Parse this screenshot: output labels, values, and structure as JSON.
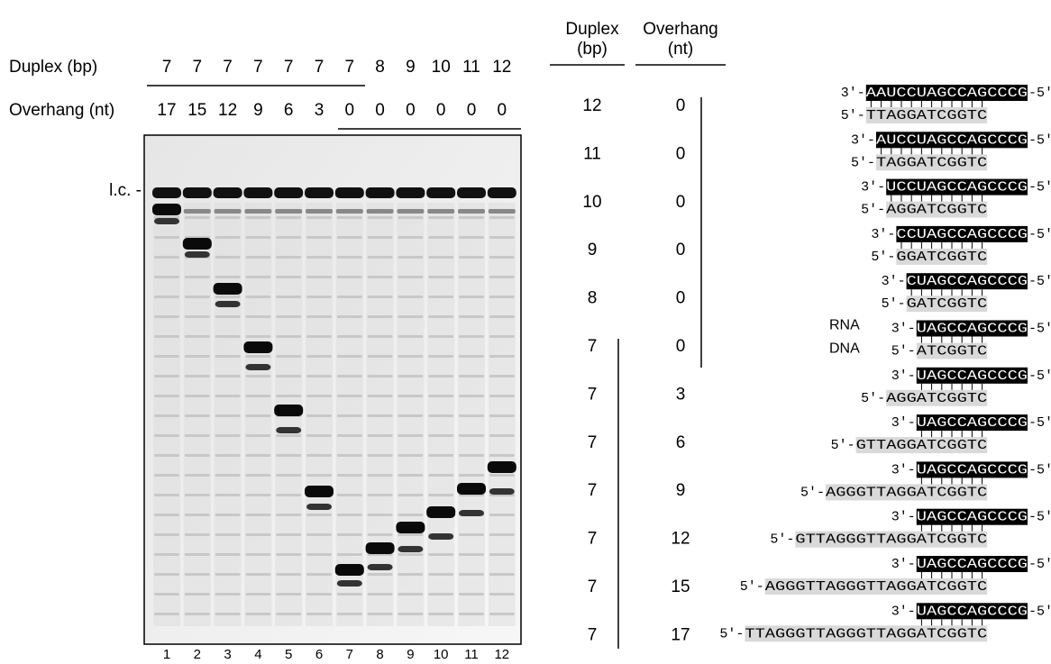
{
  "gel": {
    "row_labels": [
      "Duplex (bp)",
      "Overhang (nt)"
    ],
    "duplex": [
      7,
      7,
      7,
      7,
      7,
      7,
      7,
      8,
      9,
      10,
      11,
      12
    ],
    "overhang": [
      17,
      15,
      12,
      9,
      6,
      3,
      0,
      0,
      0,
      0,
      0,
      0
    ],
    "marker": "l.c. -",
    "lanes": [
      1,
      2,
      3,
      4,
      5,
      6,
      7,
      8,
      9,
      10,
      11,
      12
    ]
  },
  "table": {
    "headers": [
      [
        "Duplex",
        "(bp)"
      ],
      [
        "Overhang",
        "(nt)"
      ]
    ],
    "rows": [
      [
        12,
        0
      ],
      [
        11,
        0
      ],
      [
        10,
        0
      ],
      [
        9,
        0
      ],
      [
        8,
        0
      ],
      [
        7,
        0
      ],
      [
        7,
        3
      ],
      [
        7,
        6
      ],
      [
        7,
        9
      ],
      [
        7,
        12
      ],
      [
        7,
        15
      ],
      [
        7,
        17
      ]
    ]
  },
  "sequences": {
    "rna_start": "3'-",
    "rna_end": "-5'",
    "dna_start": "5'-",
    "strand_labels": [
      "RNA",
      "DNA"
    ],
    "pairs": [
      {
        "rna": "AAUCCUAGCCAGCCCG",
        "dna": "TTAGGATCGGTC"
      },
      {
        "rna": "AUCCUAGCCAGCCCG",
        "dna": "TAGGATCGGTC"
      },
      {
        "rna": "UCCUAGCCAGCCCG",
        "dna": "AGGATCGGTC"
      },
      {
        "rna": "CCUAGCCAGCCCG",
        "dna": "GGATCGGTC"
      },
      {
        "rna": "CUAGCCAGCCCG",
        "dna": "GATCGGTC"
      },
      {
        "rna": "UAGCCAGCCCG",
        "dna": "ATCGGTC"
      },
      {
        "rna": "UAGCCAGCCCG",
        "dna": "AGGATCGGTC"
      },
      {
        "rna": "UAGCCAGCCCG",
        "dna": "GTTAGGATCGGTC"
      },
      {
        "rna": "UAGCCAGCCCG",
        "dna": "AGGGTTAGGATCGGTC"
      },
      {
        "rna": "UAGCCAGCCCG",
        "dna": "GTTAGGGTTAGGATCGGTC"
      },
      {
        "rna": "UAGCCAGCCCG",
        "dna": "AGGGTTAGGGTTAGGATCGGTC"
      },
      {
        "rna": "UAGCCAGCCCG",
        "dna": "TTAGGGTTAGGGTTAGGATCGGTC"
      }
    ]
  }
}
